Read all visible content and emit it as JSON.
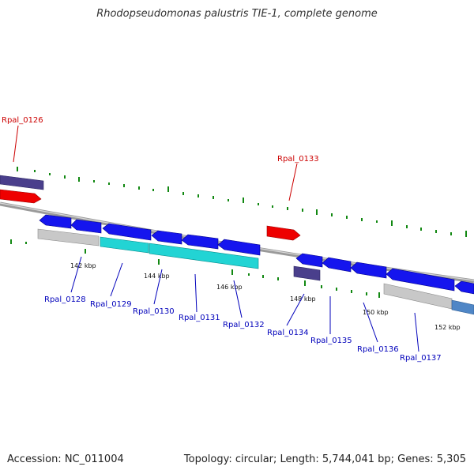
{
  "title": "Rhodopseudomonas palustris TIE-1, complete genome",
  "accession": "Accession: NC_011004",
  "summary": "Topology: circular; Length: 5,744,041 bp; Genes: 5,305",
  "colors": {
    "forward_strand_gene": "#ff0000",
    "reverse_strand_gene": "#0000ee",
    "rna": "#00cccc",
    "pseudogene": "#c8c8c8",
    "other_feature": "#4a3f8c",
    "backbone": "#808080",
    "ticks": "#118811",
    "label_top": "#cc0000",
    "label_bottom": "#0000bb"
  },
  "scale_ticks": [
    "142 kbp",
    "144 kbp",
    "146 kbp",
    "148 kbp",
    "150 kbp",
    "152 kbp"
  ],
  "gene_labels_top": [
    "Rpal_0126",
    "Rpal_0133"
  ],
  "gene_labels_bottom": [
    "Rpal_0128",
    "Rpal_0129",
    "Rpal_0130",
    "Rpal_0131",
    "Rpal_0132",
    "Rpal_0134",
    "Rpal_0135",
    "Rpal_0136",
    "Rpal_0137"
  ]
}
